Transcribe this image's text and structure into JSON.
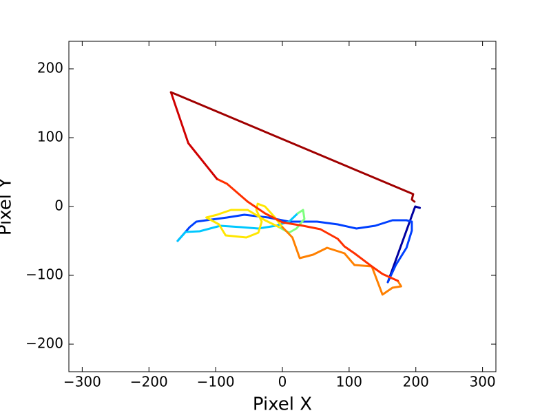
{
  "chart_data": {
    "type": "line",
    "xlabel": "Pixel X",
    "ylabel": "Pixel Y",
    "xlim": [
      -320,
      320
    ],
    "ylim": [
      -240,
      240
    ],
    "xticks": [
      {
        "value": -300,
        "label": "−300"
      },
      {
        "value": -200,
        "label": "−200"
      },
      {
        "value": -100,
        "label": "−100"
      },
      0,
      100,
      200,
      300
    ],
    "yticks": [
      {
        "value": -200,
        "label": "−200"
      },
      {
        "value": -100,
        "label": "−100"
      },
      0,
      100,
      200
    ],
    "grid": false,
    "series": [
      {
        "color": "#0000a0",
        "x": [
          206,
          199,
          158
        ],
        "values": [
          -2,
          0,
          -110
        ]
      },
      {
        "color": "#0040ff",
        "x": [
          158,
          170,
          186,
          194,
          194,
          186,
          165,
          139,
          111,
          83,
          52,
          10,
          -21,
          -57,
          -83,
          -114,
          -129,
          -139,
          -157
        ],
        "values": [
          -110,
          -85,
          -60,
          -35,
          -22,
          -20,
          -20,
          -28,
          -32,
          -26,
          -22,
          -22,
          -16,
          -12,
          -16,
          -20,
          -22,
          -30,
          -50
        ]
      },
      {
        "color": "#00c8ff",
        "x": [
          -157,
          -145,
          -124,
          -93,
          -62,
          -36,
          -10,
          10,
          23
        ],
        "values": [
          -50,
          -37,
          -36,
          -28,
          -30,
          -32,
          -28,
          -22,
          -10
        ]
      },
      {
        "color": "#7fff7f",
        "x": [
          23,
          31,
          33,
          21,
          10,
          -5
        ],
        "values": [
          -10,
          -5,
          -18,
          -32,
          -38,
          -30
        ]
      },
      {
        "color": "#ffe600",
        "x": [
          -5,
          -26,
          -52,
          -77,
          -98,
          -114,
          -95,
          -85,
          -54,
          -36,
          -31,
          -39,
          -37,
          -26,
          -12,
          0
        ],
        "values": [
          -30,
          -20,
          -5,
          -5,
          -12,
          -16,
          -26,
          -42,
          -45,
          -38,
          -22,
          -5,
          4,
          0,
          -15,
          -30
        ]
      },
      {
        "color": "#ff8000",
        "x": [
          0,
          15,
          26,
          46,
          67,
          93,
          108,
          134,
          150,
          165,
          178,
          173
        ],
        "values": [
          -30,
          -45,
          -75,
          -70,
          -60,
          -68,
          -85,
          -87,
          -128,
          -118,
          -116,
          -108
        ]
      },
      {
        "color": "#ff3000",
        "x": [
          173,
          150,
          134,
          108,
          93,
          83,
          57,
          31,
          0,
          -26,
          -52,
          -83,
          -98
        ],
        "values": [
          -108,
          -98,
          -87,
          -68,
          -58,
          -47,
          -33,
          -28,
          -23,
          -10,
          7,
          33,
          40
        ]
      },
      {
        "color": "#d00000",
        "x": [
          -98,
          -141,
          -167
        ],
        "values": [
          40,
          92,
          166
        ]
      },
      {
        "color": "#a00000",
        "x": [
          -167,
          196,
          194,
          198
        ],
        "values": [
          166,
          18,
          10,
          7
        ]
      }
    ]
  }
}
